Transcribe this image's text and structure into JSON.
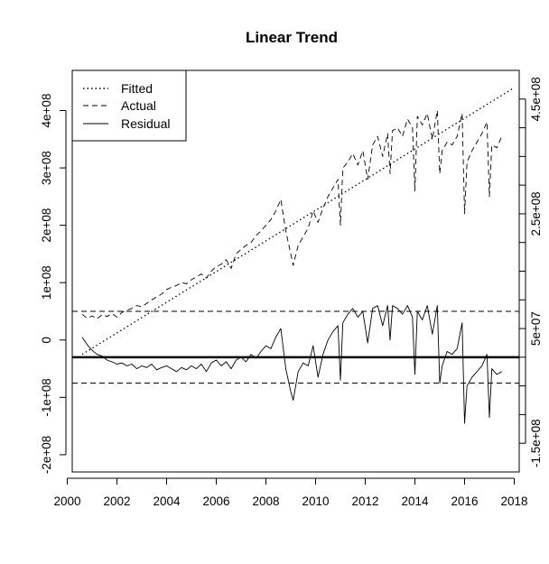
{
  "chart_data": {
    "type": "line",
    "title": "Linear Trend",
    "xlabel": "",
    "ylabel": "",
    "xlim": [
      2000.2,
      2018.2
    ],
    "ylim": [
      -230000000,
      470000000
    ],
    "y2lim": [
      -200000000,
      500000000
    ],
    "x_ticks": [
      2000,
      2002,
      2004,
      2006,
      2008,
      2010,
      2012,
      2014,
      2016,
      2018
    ],
    "x_tick_labels": [
      "2000",
      "2002",
      "2004",
      "2006",
      "2008",
      "2010",
      "2012",
      "2014",
      "2016",
      "2018"
    ],
    "y_ticks": [
      -200000000,
      -100000000,
      0,
      100000000,
      200000000,
      300000000,
      400000000
    ],
    "y_tick_labels": [
      "-2e+08",
      "-1e+08",
      "0",
      "1e+08",
      "2e+08",
      "3e+08",
      "4e+08"
    ],
    "y2_ticks": [
      -150000000,
      -100000000,
      -50000000,
      0,
      50000000,
      100000000,
      150000000,
      200000000,
      250000000,
      300000000,
      350000000,
      400000000,
      450000000
    ],
    "y2_tick_labels": [
      "-1.5e+08",
      "",
      "",
      "",
      "5e+07",
      "",
      "",
      "",
      "2.5e+08",
      "",
      "",
      "",
      "4.5e+08"
    ],
    "legend": {
      "position": "top-left",
      "entries": [
        {
          "label": "Fitted",
          "style": "dotted"
        },
        {
          "label": "Actual",
          "style": "dashed"
        },
        {
          "label": "Residual",
          "style": "solid"
        }
      ]
    },
    "reference_lines": [
      {
        "axis": "right",
        "value": 0,
        "style": "solid-thick"
      },
      {
        "axis": "right",
        "value": 80000000,
        "style": "dashed"
      },
      {
        "axis": "right",
        "value": -45000000,
        "style": "dashed"
      }
    ],
    "series": [
      {
        "name": "Fitted",
        "axis": "left",
        "style": "dotted",
        "x": [
          2000.6,
          2018.0
        ],
        "values": [
          -25000000,
          440000000
        ]
      },
      {
        "name": "Actual",
        "axis": "left",
        "style": "dashed",
        "x": [
          2000.6,
          2000.8,
          2001.0,
          2001.2,
          2001.4,
          2001.6,
          2001.8,
          2002.0,
          2002.2,
          2002.4,
          2002.6,
          2002.8,
          2003.0,
          2003.2,
          2003.4,
          2003.6,
          2003.8,
          2004.0,
          2004.2,
          2004.4,
          2004.6,
          2004.8,
          2005.0,
          2005.2,
          2005.4,
          2005.6,
          2005.8,
          2006.0,
          2006.2,
          2006.4,
          2006.6,
          2006.8,
          2007.0,
          2007.2,
          2007.4,
          2007.6,
          2007.8,
          2008.0,
          2008.2,
          2008.4,
          2008.6,
          2008.8,
          2009.0,
          2009.1,
          2009.3,
          2009.5,
          2009.7,
          2009.9,
          2010.1,
          2010.3,
          2010.5,
          2010.7,
          2010.9,
          2011.0,
          2011.1,
          2011.3,
          2011.5,
          2011.7,
          2011.9,
          2012.1,
          2012.3,
          2012.5,
          2012.7,
          2012.9,
          2013.0,
          2013.1,
          2013.3,
          2013.5,
          2013.7,
          2013.9,
          2014.0,
          2014.1,
          2014.3,
          2014.5,
          2014.7,
          2014.9,
          2015.0,
          2015.1,
          2015.3,
          2015.5,
          2015.7,
          2015.9,
          2016.0,
          2016.1,
          2016.3,
          2016.5,
          2016.7,
          2016.9,
          2017.0,
          2017.1,
          2017.3,
          2017.5
        ],
        "values": [
          45000000,
          38000000,
          42000000,
          37000000,
          44000000,
          41000000,
          46000000,
          40000000,
          48000000,
          52000000,
          55000000,
          60000000,
          58000000,
          64000000,
          70000000,
          75000000,
          80000000,
          88000000,
          92000000,
          95000000,
          100000000,
          98000000,
          105000000,
          110000000,
          115000000,
          108000000,
          120000000,
          128000000,
          132000000,
          140000000,
          125000000,
          150000000,
          158000000,
          165000000,
          170000000,
          182000000,
          190000000,
          200000000,
          210000000,
          225000000,
          245000000,
          190000000,
          150000000,
          130000000,
          165000000,
          180000000,
          195000000,
          225000000,
          205000000,
          230000000,
          250000000,
          265000000,
          280000000,
          200000000,
          300000000,
          310000000,
          325000000,
          305000000,
          330000000,
          280000000,
          340000000,
          355000000,
          320000000,
          360000000,
          290000000,
          365000000,
          370000000,
          355000000,
          385000000,
          370000000,
          260000000,
          390000000,
          375000000,
          395000000,
          350000000,
          400000000,
          290000000,
          330000000,
          345000000,
          340000000,
          355000000,
          395000000,
          220000000,
          310000000,
          330000000,
          345000000,
          360000000,
          380000000,
          250000000,
          340000000,
          335000000,
          355000000
        ]
      },
      {
        "name": "Residual",
        "axis": "right",
        "style": "solid",
        "x": [
          2000.6,
          2000.8,
          2001.0,
          2001.2,
          2001.4,
          2001.6,
          2001.8,
          2002.0,
          2002.2,
          2002.4,
          2002.6,
          2002.8,
          2003.0,
          2003.2,
          2003.4,
          2003.6,
          2003.8,
          2004.0,
          2004.2,
          2004.4,
          2004.6,
          2004.8,
          2005.0,
          2005.2,
          2005.4,
          2005.6,
          2005.8,
          2006.0,
          2006.2,
          2006.4,
          2006.6,
          2006.8,
          2007.0,
          2007.2,
          2007.4,
          2007.6,
          2007.8,
          2008.0,
          2008.2,
          2008.4,
          2008.6,
          2008.8,
          2009.0,
          2009.1,
          2009.3,
          2009.5,
          2009.7,
          2009.9,
          2010.1,
          2010.3,
          2010.5,
          2010.7,
          2010.9,
          2011.0,
          2011.1,
          2011.3,
          2011.5,
          2011.7,
          2011.9,
          2012.1,
          2012.3,
          2012.5,
          2012.7,
          2012.9,
          2013.0,
          2013.1,
          2013.3,
          2013.5,
          2013.7,
          2013.9,
          2014.0,
          2014.1,
          2014.3,
          2014.5,
          2014.7,
          2014.9,
          2015.0,
          2015.1,
          2015.3,
          2015.5,
          2015.7,
          2015.9,
          2016.0,
          2016.1,
          2016.3,
          2016.5,
          2016.7,
          2016.9,
          2017.0,
          2017.1,
          2017.3,
          2017.5
        ],
        "values": [
          35000000,
          22000000,
          12000000,
          5000000,
          2000000,
          -5000000,
          -8000000,
          -12000000,
          -10000000,
          -15000000,
          -12000000,
          -20000000,
          -15000000,
          -18000000,
          -12000000,
          -22000000,
          -18000000,
          -15000000,
          -20000000,
          -25000000,
          -18000000,
          -22000000,
          -15000000,
          -20000000,
          -12000000,
          -25000000,
          -10000000,
          -5000000,
          -15000000,
          -8000000,
          -20000000,
          -5000000,
          0,
          -8000000,
          5000000,
          -2000000,
          10000000,
          20000000,
          15000000,
          35000000,
          50000000,
          -20000000,
          -60000000,
          -75000000,
          -25000000,
          -10000000,
          -15000000,
          20000000,
          -35000000,
          5000000,
          30000000,
          45000000,
          55000000,
          -40000000,
          60000000,
          75000000,
          85000000,
          70000000,
          80000000,
          25000000,
          85000000,
          90000000,
          55000000,
          90000000,
          30000000,
          90000000,
          85000000,
          75000000,
          90000000,
          70000000,
          -30000000,
          80000000,
          65000000,
          90000000,
          40000000,
          90000000,
          -45000000,
          -15000000,
          10000000,
          5000000,
          15000000,
          60000000,
          -115000000,
          -50000000,
          -35000000,
          -25000000,
          -15000000,
          5000000,
          -105000000,
          -20000000,
          -30000000,
          -25000000
        ]
      }
    ]
  }
}
